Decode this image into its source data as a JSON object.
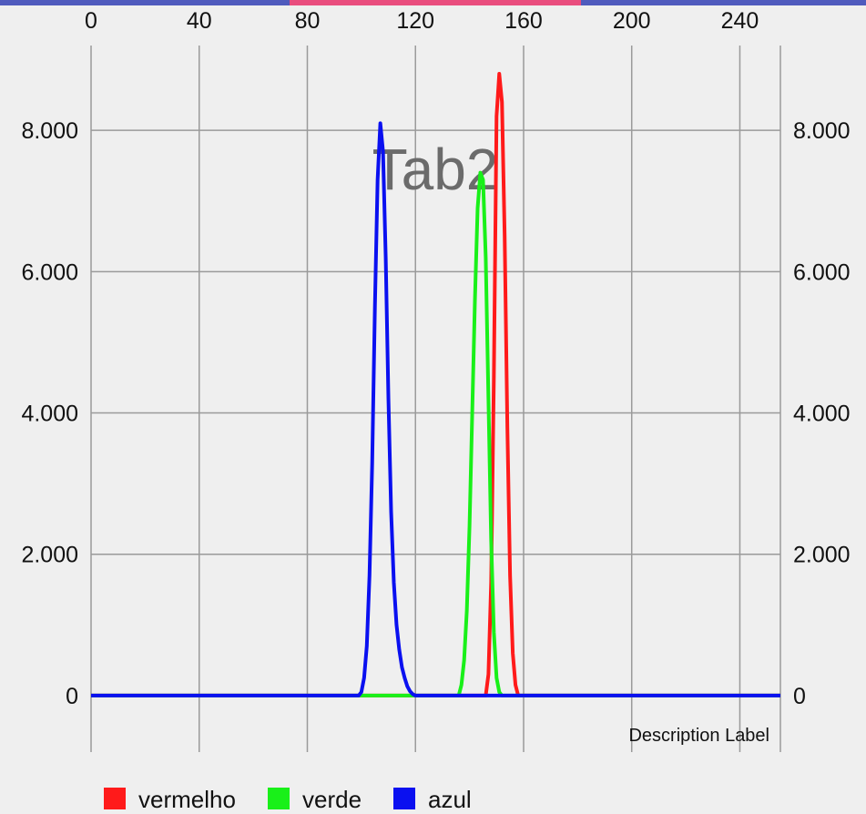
{
  "tabs": {
    "colors": {
      "inactive": "#4f5bbd",
      "active": "#e94d7e"
    }
  },
  "chart_data": {
    "type": "line",
    "center_text": "Tab2",
    "description": "Description Label",
    "x_ticks": [
      "0",
      "40",
      "80",
      "120",
      "160",
      "200",
      "240"
    ],
    "y_ticks": [
      "0",
      "2.000",
      "4.000",
      "6.000",
      "8.000"
    ],
    "xlim": [
      0,
      255
    ],
    "ylim": [
      -800,
      9200
    ],
    "grid": true,
    "legend_position": "bottom-left",
    "series": [
      {
        "name": "vermelho",
        "color": "#ff1a1a",
        "x": [
          0,
          146,
          147,
          148,
          149,
          150,
          151,
          152,
          153,
          154,
          155,
          156,
          157,
          158,
          255
        ],
        "y": [
          0,
          0,
          300,
          1600,
          4500,
          8200,
          8800,
          8400,
          6500,
          3800,
          1700,
          600,
          150,
          0,
          0
        ]
      },
      {
        "name": "verde",
        "color": "#19f019",
        "x": [
          0,
          136,
          137,
          138,
          139,
          140,
          141,
          142,
          143,
          144,
          145,
          146,
          147,
          148,
          149,
          150,
          151,
          152,
          255
        ],
        "y": [
          0,
          0,
          150,
          500,
          1200,
          2400,
          4000,
          5600,
          6900,
          7400,
          7300,
          6200,
          4200,
          2200,
          900,
          250,
          50,
          0,
          0
        ]
      },
      {
        "name": "azul",
        "color": "#0a10f0",
        "x": [
          0,
          99,
          100,
          101,
          102,
          103,
          104,
          105,
          106,
          107,
          108,
          109,
          110,
          111,
          112,
          113,
          114,
          115,
          116,
          117,
          118,
          119,
          120,
          255
        ],
        "y": [
          0,
          0,
          50,
          250,
          700,
          1700,
          3300,
          5500,
          7300,
          8100,
          7700,
          6200,
          4200,
          2600,
          1600,
          1000,
          650,
          400,
          250,
          130,
          60,
          20,
          0,
          0
        ]
      }
    ]
  }
}
